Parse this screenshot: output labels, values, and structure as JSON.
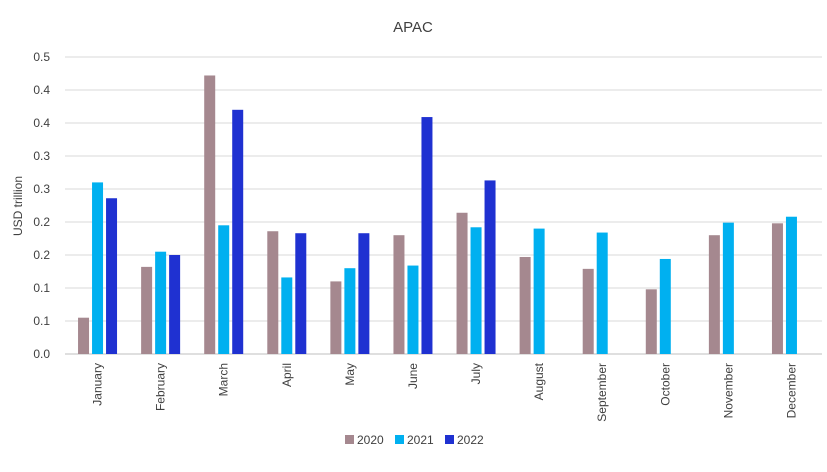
{
  "chart_data": {
    "type": "bar",
    "title": "APAC",
    "xlabel": "",
    "ylabel": "USD trillion",
    "ylim": [
      0,
      0.45
    ],
    "y_ticks": [
      0.0,
      0.05,
      0.1,
      0.15,
      0.2,
      0.25,
      0.3,
      0.35,
      0.4,
      0.45
    ],
    "y_tick_labels": [
      "0.0",
      "0.1",
      "0.1",
      "0.2",
      "0.2",
      "0.3",
      "0.3",
      "0.4",
      "0.4",
      "0.5"
    ],
    "categories": [
      "January",
      "February",
      "March",
      "April",
      "May",
      "June",
      "July",
      "August",
      "September",
      "October",
      "November",
      "December"
    ],
    "series": [
      {
        "name": "2020",
        "color": "#a5888f",
        "values": [
          0.055,
          0.132,
          0.422,
          0.186,
          0.11,
          0.18,
          0.214,
          0.147,
          0.129,
          0.098,
          0.18,
          0.198
        ]
      },
      {
        "name": "2021",
        "color": "#00b0f0",
        "values": [
          0.26,
          0.155,
          0.195,
          0.116,
          0.13,
          0.134,
          0.192,
          0.19,
          0.184,
          0.144,
          0.199,
          0.208
        ]
      },
      {
        "name": "2022",
        "color": "#1f31d1",
        "values": [
          0.236,
          0.15,
          0.37,
          0.183,
          0.183,
          0.359,
          0.263,
          null,
          null,
          null,
          null,
          null
        ]
      }
    ],
    "grid": true,
    "legend": "bottom-center"
  }
}
